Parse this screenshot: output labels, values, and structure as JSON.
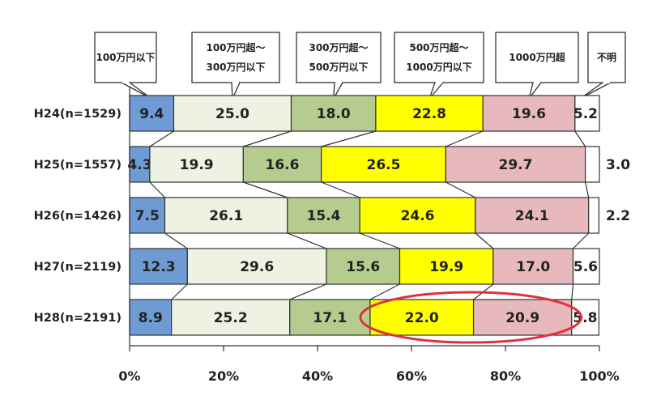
{
  "chart_data": {
    "type": "bar",
    "orientation": "horizontal",
    "stacked": "percent",
    "categories": [
      "H24(n=1529)",
      "H25(n=1557)",
      "H26(n=1426)",
      "H27(n=2119)",
      "H28(n=2191)"
    ],
    "series": [
      {
        "name": "100万円以下",
        "color": "#6f9bd4",
        "values": [
          9.4,
          4.3,
          7.5,
          12.3,
          8.9
        ],
        "labels": [
          "9.4",
          "4.3",
          "7.5",
          "12.3",
          "8.9"
        ]
      },
      {
        "name": "100万円超～\n300万円以下",
        "color": "#eef2e3",
        "values": [
          25.0,
          19.9,
          26.1,
          29.6,
          25.2
        ],
        "labels": [
          "25.0",
          "19.9",
          "26.1",
          "29.6",
          "25.2"
        ]
      },
      {
        "name": "300万円超～\n500万円以下",
        "color": "#b6cc8f",
        "values": [
          18.0,
          16.6,
          15.4,
          15.6,
          17.1
        ],
        "labels": [
          "18.0",
          "16.6",
          "15.4",
          "15.6",
          "17.1"
        ]
      },
      {
        "name": "500万円超～\n1000万円以下",
        "color": "#ffff00",
        "values": [
          22.8,
          26.5,
          24.6,
          19.9,
          22.0
        ],
        "labels": [
          "22.8",
          "26.5",
          "24.6",
          "19.9",
          "22.0"
        ]
      },
      {
        "name": "1000万円超",
        "color": "#e8b9bc",
        "values": [
          19.6,
          29.7,
          24.1,
          17.0,
          20.9
        ],
        "labels": [
          "19.6",
          "29.7",
          "24.1",
          "17.0",
          "20.9"
        ]
      },
      {
        "name": "不明",
        "color": "#ffffff",
        "values": [
          5.2,
          3.0,
          2.2,
          5.6,
          5.8
        ],
        "labels": [
          "5.2",
          "3.0",
          "2.2",
          "5.6",
          "5.8"
        ]
      }
    ],
    "xlim": [
      0,
      100
    ],
    "x_ticks": [
      "0%",
      "20%",
      "40%",
      "60%",
      "80%",
      "100%"
    ],
    "highlight": {
      "category": "H28(n=2191)",
      "series": [
        "500万円超～\n1000万円以下",
        "1000万円超"
      ],
      "color": "#e03040"
    },
    "grid": false,
    "legend": "top"
  }
}
